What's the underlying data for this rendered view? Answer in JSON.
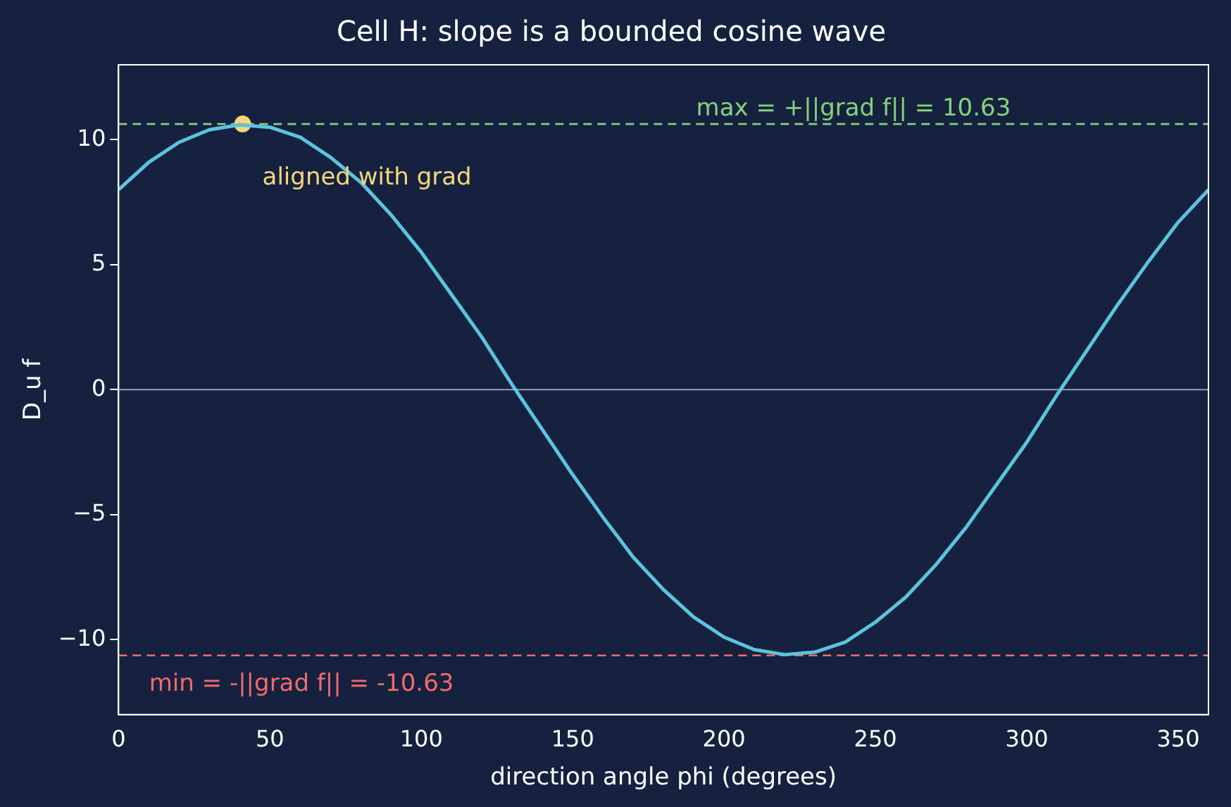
{
  "chart_data": {
    "type": "line",
    "title": "Cell H: slope is a bounded cosine wave",
    "xlabel": "direction angle phi (degrees)",
    "ylabel": "D_u f",
    "xlim": [
      0,
      360
    ],
    "xticks": [
      0,
      50,
      100,
      150,
      200,
      250,
      300,
      350
    ],
    "ylim": [
      -13,
      13
    ],
    "yticks": [
      {
        "value": -10,
        "label": "−10"
      },
      {
        "value": -5,
        "label": "−5"
      },
      0,
      5,
      10
    ],
    "grid": false,
    "legend": false,
    "marker": "none",
    "line_style": "solid",
    "series": [
      {
        "type": "line",
        "color": "#5bc4dc",
        "x": [
          0,
          10,
          20,
          30,
          40,
          50,
          60,
          70,
          80,
          90,
          100,
          110,
          120,
          130,
          140,
          150,
          160,
          170,
          180,
          190,
          200,
          210,
          220,
          230,
          240,
          250,
          260,
          270,
          280,
          290,
          300,
          310,
          320,
          330,
          340,
          350,
          360
        ],
        "values": [
          8.0,
          9.1,
          9.9,
          10.4,
          10.6,
          10.5,
          10.1,
          9.3,
          8.3,
          7.0,
          5.5,
          3.8,
          2.1,
          0.2,
          -1.6,
          -3.4,
          -5.1,
          -6.7,
          -8.0,
          -9.1,
          -9.9,
          -10.4,
          -10.6,
          -10.5,
          -10.1,
          -9.3,
          -8.3,
          -7.0,
          -5.5,
          -3.8,
          -2.1,
          -0.2,
          1.6,
          3.4,
          5.1,
          6.7,
          8.0
        ]
      },
      {
        "type": "scatter",
        "color": "#f5d67a",
        "marker": "circle",
        "x": [
          41
        ],
        "values": [
          10.63
        ]
      }
    ],
    "ref_lines": [
      {
        "axis": "y",
        "value": 0,
        "color": "#aab0c0",
        "line_style": "solid"
      },
      {
        "axis": "y",
        "value": 10.63,
        "label": "max = +||grad f|| = 10.63",
        "color": "#86d07a",
        "line_style": "dashed"
      },
      {
        "axis": "y",
        "value": -10.63,
        "label": "min = -||grad f|| = -10.63",
        "color": "#ef6b6b",
        "line_style": "dashed"
      }
    ],
    "annotations": [
      {
        "text": "aligned with grad",
        "x": 41,
        "y": 10.63
      }
    ]
  }
}
